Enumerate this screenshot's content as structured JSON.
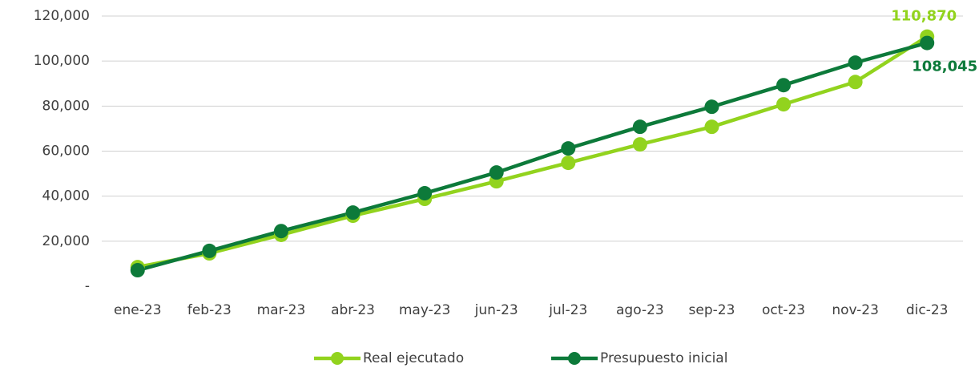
{
  "chart_data": {
    "type": "line",
    "categories": [
      "ene-23",
      "feb-23",
      "mar-23",
      "abr-23",
      "may-23",
      "jun-23",
      "jul-23",
      "ago-23",
      "sep-23",
      "oct-23",
      "nov-23",
      "dic-23"
    ],
    "series": [
      {
        "name": "Real ejecutado",
        "color": "#92d31e",
        "values": [
          8500,
          14600,
          22800,
          31300,
          38800,
          46600,
          54800,
          63000,
          70800,
          80800,
          90700,
          110870
        ],
        "value_labels": [
          null,
          null,
          null,
          null,
          null,
          null,
          null,
          null,
          null,
          null,
          null,
          "110,870"
        ]
      },
      {
        "name": "Presupuesto inicial",
        "color": "#0d7a3a",
        "values": [
          7100,
          15700,
          24500,
          32700,
          41300,
          50500,
          61200,
          70800,
          79700,
          89300,
          99300,
          108045
        ],
        "value_labels": [
          null,
          null,
          null,
          null,
          null,
          null,
          null,
          null,
          null,
          null,
          null,
          "108,045"
        ]
      }
    ],
    "ylim": [
      0,
      120000
    ],
    "yticks": [
      {
        "value": 0,
        "label": "-"
      },
      {
        "value": 20000,
        "label": "20,000"
      },
      {
        "value": 40000,
        "label": "40,000"
      },
      {
        "value": 60000,
        "label": "60,000"
      },
      {
        "value": 80000,
        "label": "80,000"
      },
      {
        "value": 100000,
        "label": "100,000"
      },
      {
        "value": 120000,
        "label": "120,000"
      }
    ],
    "grid": true,
    "legend": "bottom"
  }
}
